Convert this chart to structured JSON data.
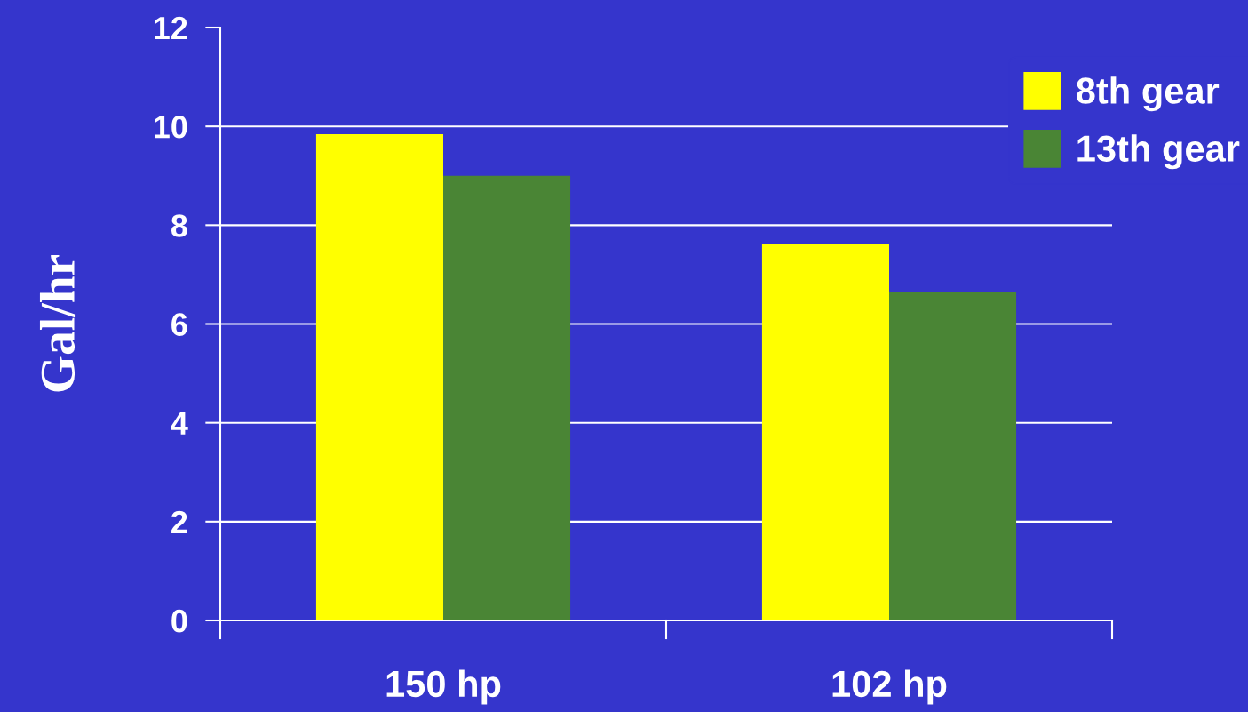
{
  "chart_data": {
    "type": "bar",
    "ylabel": "Gal/hr",
    "categories": [
      "150 hp",
      "102 hp"
    ],
    "series": [
      {
        "name": "8th gear",
        "color": "#ffff00",
        "values": [
          9.84,
          7.61
        ]
      },
      {
        "name": "13th gear",
        "color": "#4a8535",
        "values": [
          9.0,
          6.64
        ]
      }
    ],
    "ylim": [
      0,
      12
    ],
    "yticks": [
      0,
      2,
      4,
      6,
      8,
      10,
      12
    ],
    "grid": "y",
    "legend": "top right"
  }
}
